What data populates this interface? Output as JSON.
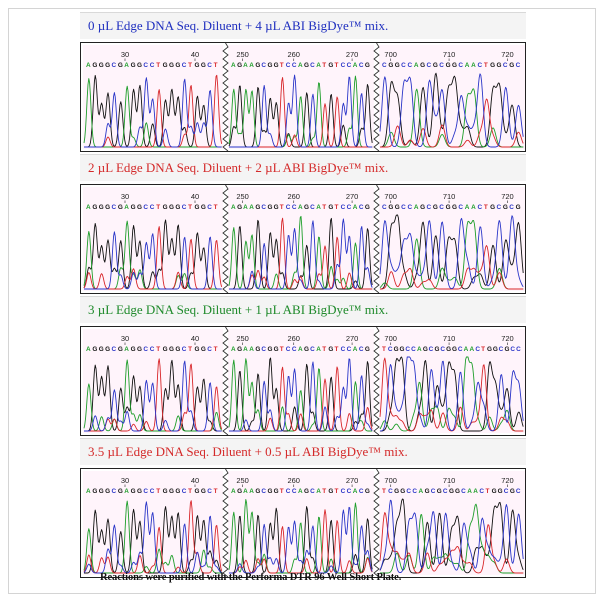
{
  "footer": "Reactions were purified with the Performa DTR 96 Well Short Plate.",
  "colors": {
    "A": "#1e9e2a",
    "C": "#2a35c8",
    "G": "#111111",
    "T": "#d8262a",
    "panel_bg": "#fff4fb"
  },
  "sections": [
    {
      "title": "0 µL Edge DNA Seq. Diluent + 4 µL ABI BigDye™ mix.",
      "title_color": "#1f2fbf",
      "panels": [
        {
          "seq": "AGGGCGAGGCCTGGGCTGGCT",
          "ticks": [
            "30",
            "40"
          ]
        },
        {
          "seq": "AGAAGCGGTCCAGCATGTCCACG",
          "ticks": [
            "250",
            "260",
            "270"
          ]
        },
        {
          "seq": "CGGCCAGCGCGGCAACTGGCGC",
          "ticks": [
            "700",
            "710",
            "720"
          ]
        }
      ]
    },
    {
      "title": "2 µL Edge DNA Seq. Diluent + 2 µL ABI BigDye™ mix.",
      "title_color": "#d42a2a",
      "panels": [
        {
          "seq": "AGGGCGAGGCCTGGGCTGGCT",
          "ticks": [
            "30",
            "40"
          ]
        },
        {
          "seq": "AGAAGCGGTCCAGCATGTCCACG",
          "ticks": [
            "250",
            "260",
            "270"
          ]
        },
        {
          "seq": "CGGCCAGCGCGGCAACTGCGCG",
          "ticks": [
            "700",
            "710",
            "720"
          ]
        }
      ]
    },
    {
      "title": "3 µL Edge DNA Seq. Diluent + 1 µL ABI BigDye™ mix.",
      "title_color": "#1e8a2a",
      "panels": [
        {
          "seq": "AGGGCGAGGCCTGGGCTGGCT",
          "ticks": [
            "30",
            "40"
          ]
        },
        {
          "seq": "AGAAGCGGTCCAGCATGTCCACG",
          "ticks": [
            "250",
            "260",
            "270"
          ]
        },
        {
          "seq": "TCGGCCAGCGCGGCAACTGGCGCC",
          "ticks": [
            "700",
            "710",
            "720"
          ]
        }
      ]
    },
    {
      "title": "3.5 µL Edge DNA Seq. Diluent + 0.5 µL ABI BigDye™ mix.",
      "title_color": "#d42a2a",
      "panels": [
        {
          "seq": "AGGGCGAGGCCTGGGCTGGCT",
          "ticks": [
            "30",
            "40"
          ]
        },
        {
          "seq": "AGAAGCGGTCCAGCATGTCCACG",
          "ticks": [
            "250",
            "260",
            "270"
          ]
        },
        {
          "seq": "TCGGCCAGCGCGGCAACTGGCGC",
          "ticks": [
            "700",
            "710",
            "720"
          ]
        }
      ]
    }
  ]
}
